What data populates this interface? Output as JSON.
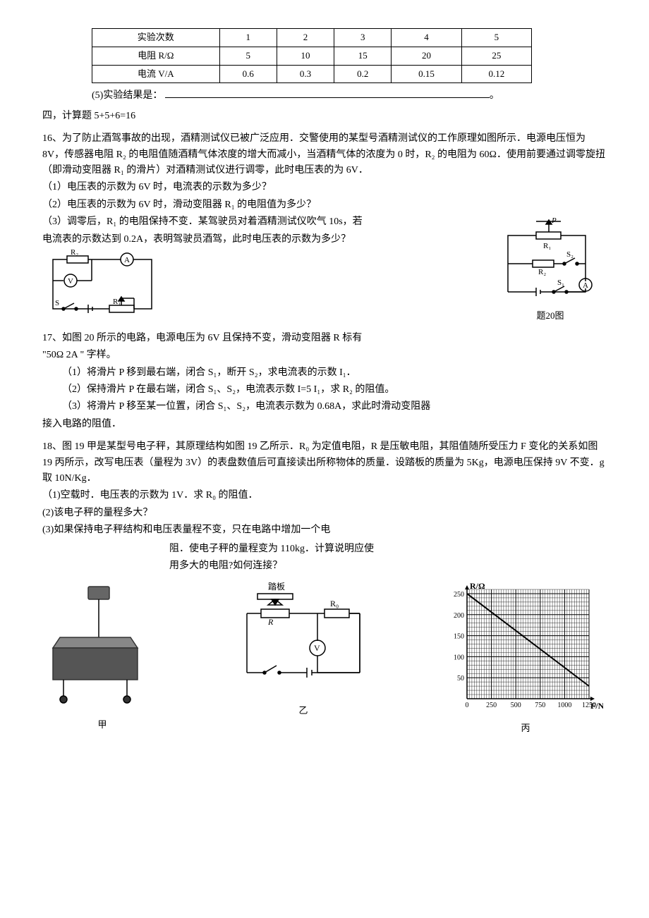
{
  "table": {
    "headers": [
      "实验次数",
      "1",
      "2",
      "3",
      "4",
      "5"
    ],
    "row_r": [
      "电阻 R/Ω",
      "5",
      "10",
      "15",
      "20",
      "25"
    ],
    "row_i": [
      "电流 V/A",
      "0.6",
      "0.3",
      "0.2",
      "0.15",
      "0.12"
    ]
  },
  "q15_5": "(5)实验结果是：",
  "sec4": "四，计算题 5+5+6=16",
  "q16": {
    "intro": "16、为了防止酒驾事故的出现，酒精测试仪已被广泛应用．交警使用的某型号酒精测试仪的工作原理如图所示．电源电压恒为 8V，传感器电阻 R₂ 的电阻值随酒精气体浓度的增大而减小，当酒精气体的浓度为 0 时，R₂ 的电阻为 60Ω．使用前要通过调零旋扭（即滑动变阻器 R₁ 的滑片）对酒精测试仪进行调零，此时电压表的为 6V．",
    "p1": "（1）电压表的示数为 6V 时，电流表的示数为多少？",
    "p2": "（2）电压表的示数为 6V 时，滑动变阻器 R₁ 的电阻值为多少？",
    "p3a": "（3）调零后，R₁ 的电阻保持不变．某驾驶员对着酒精测试仪吹气 10s，若",
    "p3b": "电流表的示数达到 0.2A，表明驾驶员酒驾，此时电压表的示数为多少？"
  },
  "q17": {
    "intro1": "17、如图 20 所示的电路，电源电压为 6V 且保持不变，滑动变阻器 R 标有",
    "intro2": "\"50Ω 2A \" 字样。",
    "p1": "（1）将滑片 P 移到最右端，闭合 S₁，断开 S₂，求电流表的示数 I₁．",
    "p2": "（2）保持滑片 P 在最右端，闭合 S₁、S₂，电流表示数 I=5 I₁，求 R₂ 的阻值。",
    "p3a": "（3）将滑片 P 移至某一位置，闭合 S₁、S₂，电流表示数为 0.68A，求此时滑动变阻器",
    "p3b": "接入电路的阻值．"
  },
  "fig20_caption": "题20图",
  "q18": {
    "intro": "18、图 19 甲是某型号电子秤，其原理结构如图 19 乙所示．R₀ 为定值电阻，R 是压敏电阻，其阻值随所受压力 F 变化的关系如图 19 丙所示，改写电压表（量程为 3V）的表盘数值后可直接读出所称物体的质量．设踏板的质量为 5Kg，电源电压保持 9V 不变．g 取 10N/Kg．",
    "p1": "（1)空载时．电压表的示数为 1V．求 R₀ 的阻值．",
    "p2": "(2)该电子秤的量程多大？",
    "p3a": "(3)如果保持电子秤结构和电压表量程不变，只在电路中增加一个电",
    "p3b": "阻．使电子秤的量程变为 110kg．计算说明应使",
    "p3c": "用多大的电阻?如何连接？",
    "cap_jia": "甲",
    "cap_yi": "乙",
    "cap_bing": "丙"
  },
  "chart": {
    "y_label": "R/Ω",
    "x_label": "F/N",
    "y_ticks": [
      "50",
      "100",
      "150",
      "200",
      "250"
    ],
    "x_ticks": [
      "0",
      "250",
      "500",
      "750",
      "1000",
      "1250"
    ],
    "line_start": {
      "x": 0,
      "yval": 250
    },
    "line_end": {
      "x": 1250,
      "yval": 30
    },
    "bg": "#ffffff",
    "grid": "#000000"
  },
  "colors": {
    "text": "#000000"
  }
}
